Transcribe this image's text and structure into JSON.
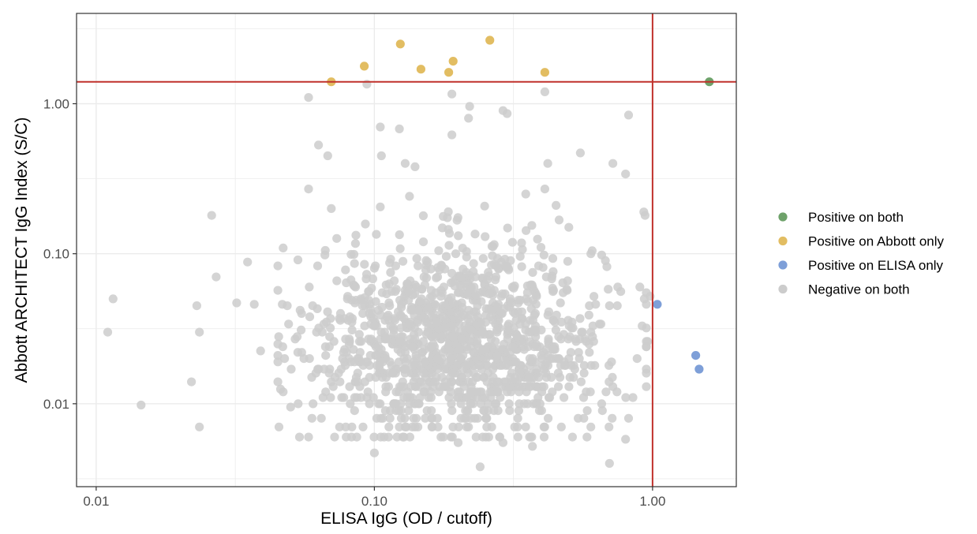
{
  "chart_data": {
    "type": "scatter",
    "title": "",
    "xlabel": "ELISA IgG (OD / cutoff)",
    "ylabel": "Abbott ARCHITECT IgG Index (S/C)",
    "xscale": "log",
    "yscale": "log",
    "xlim": [
      0.0085,
      2.0
    ],
    "ylim": [
      0.0028,
      4.0
    ],
    "x_ticks": [
      {
        "value": 0.01,
        "label": "0.01"
      },
      {
        "value": 0.1,
        "label": "0.10"
      },
      {
        "value": 1.0,
        "label": "1.00"
      }
    ],
    "y_ticks": [
      {
        "value": 0.01,
        "label": "0.01"
      },
      {
        "value": 0.1,
        "label": "0.10"
      },
      {
        "value": 1.0,
        "label": "1.00"
      }
    ],
    "grid": true,
    "reference_lines": {
      "x": 1.0,
      "y": 1.4,
      "color": "#c0312b"
    },
    "legend": {
      "placement": "right",
      "entries": [
        {
          "label": "Positive on both",
          "color": "#6ea26a"
        },
        {
          "label": "Positive on Abbott only",
          "color": "#e2bd62"
        },
        {
          "label": "Positive on ELISA only",
          "color": "#7e9fd8"
        },
        {
          "label": "Negative on both",
          "color": "#cccccc"
        }
      ]
    },
    "series": [
      {
        "name": "Positive on both",
        "color": "#6ea26a",
        "points": [
          [
            1.6,
            1.4
          ]
        ]
      },
      {
        "name": "Positive on Abbott only",
        "color": "#e2bd62",
        "points": [
          [
            0.07,
            1.4
          ],
          [
            0.092,
            1.78
          ],
          [
            0.124,
            2.5
          ],
          [
            0.147,
            1.7
          ],
          [
            0.185,
            1.62
          ],
          [
            0.192,
            1.92
          ],
          [
            0.26,
            2.65
          ],
          [
            0.41,
            1.62
          ]
        ]
      },
      {
        "name": "Positive on ELISA only",
        "color": "#7e9fd8",
        "points": [
          [
            1.04,
            0.046
          ],
          [
            1.43,
            0.021
          ],
          [
            1.47,
            0.017
          ]
        ]
      },
      {
        "name": "Negative on both",
        "color": "#cccccc",
        "n_points": 1400,
        "points": [
          [
            0.011,
            0.03
          ],
          [
            0.0115,
            0.05
          ],
          [
            0.0145,
            0.0098
          ],
          [
            0.022,
            0.014
          ],
          [
            0.023,
            0.045
          ],
          [
            0.0235,
            0.007
          ],
          [
            0.0235,
            0.03
          ],
          [
            0.026,
            0.18
          ],
          [
            0.027,
            0.07
          ],
          [
            0.032,
            0.047
          ],
          [
            0.035,
            0.088
          ],
          [
            0.037,
            0.046
          ],
          [
            0.039,
            0.0225
          ],
          [
            0.058,
            1.1
          ],
          [
            0.058,
            0.27
          ],
          [
            0.063,
            0.53
          ],
          [
            0.068,
            0.45
          ],
          [
            0.07,
            0.2
          ],
          [
            0.094,
            1.35
          ],
          [
            0.105,
            0.7
          ],
          [
            0.106,
            0.45
          ],
          [
            0.123,
            0.68
          ],
          [
            0.129,
            0.4
          ],
          [
            0.14,
            0.38
          ],
          [
            0.19,
            1.16
          ],
          [
            0.22,
            0.96
          ],
          [
            0.218,
            0.8
          ],
          [
            0.19,
            0.62
          ],
          [
            0.29,
            0.9
          ],
          [
            0.3,
            0.86
          ],
          [
            0.41,
            1.2
          ],
          [
            0.42,
            0.4
          ],
          [
            0.41,
            0.27
          ],
          [
            0.82,
            0.84
          ],
          [
            0.8,
            0.34
          ],
          [
            0.93,
            0.19
          ],
          [
            0.94,
            0.18
          ],
          [
            0.9,
            0.06
          ],
          [
            0.98,
            0.052
          ],
          [
            0.96,
            0.026
          ],
          [
            0.88,
            0.02
          ],
          [
            0.85,
            0.011
          ],
          [
            0.82,
            0.008
          ],
          [
            0.8,
            0.0058
          ],
          [
            0.72,
            0.4
          ],
          [
            0.55,
            0.47
          ],
          [
            0.29,
            0.0055
          ],
          [
            0.2,
            0.0055
          ],
          [
            0.24,
            0.0038
          ],
          [
            0.37,
            0.0052
          ],
          [
            0.7,
            0.004
          ],
          [
            0.1,
            0.0047
          ],
          [
            0.058,
            0.006
          ],
          [
            0.05,
            0.0095
          ],
          [
            0.047,
            0.012
          ],
          [
            0.046,
            0.0125
          ],
          [
            0.07,
            0.014
          ],
          [
            0.075,
            0.007
          ],
          [
            0.088,
            0.02
          ],
          [
            0.11,
            0.013
          ],
          [
            0.155,
            0.013
          ],
          [
            0.2,
            0.012
          ],
          [
            0.3,
            0.012
          ],
          [
            0.4,
            0.012
          ],
          [
            0.5,
            0.02
          ],
          [
            0.6,
            0.03
          ],
          [
            0.7,
            0.045
          ],
          [
            0.75,
            0.06
          ],
          [
            0.6,
            0.1
          ],
          [
            0.5,
            0.15
          ],
          [
            0.45,
            0.21
          ],
          [
            0.35,
            0.25
          ],
          [
            0.25,
            0.13
          ],
          [
            0.15,
            0.12
          ],
          [
            0.1,
            0.08
          ],
          [
            0.08,
            0.05
          ],
          [
            0.065,
            0.03
          ],
          [
            0.06,
            0.045
          ],
          [
            0.1,
            0.025
          ],
          [
            0.13,
            0.035
          ],
          [
            0.18,
            0.045
          ],
          [
            0.22,
            0.06
          ],
          [
            0.28,
            0.08
          ],
          [
            0.32,
            0.04
          ],
          [
            0.38,
            0.03
          ],
          [
            0.45,
            0.02
          ],
          [
            0.52,
            0.015
          ],
          [
            0.62,
            0.018
          ],
          [
            0.72,
            0.013
          ],
          [
            0.66,
            0.009
          ]
        ]
      }
    ]
  }
}
